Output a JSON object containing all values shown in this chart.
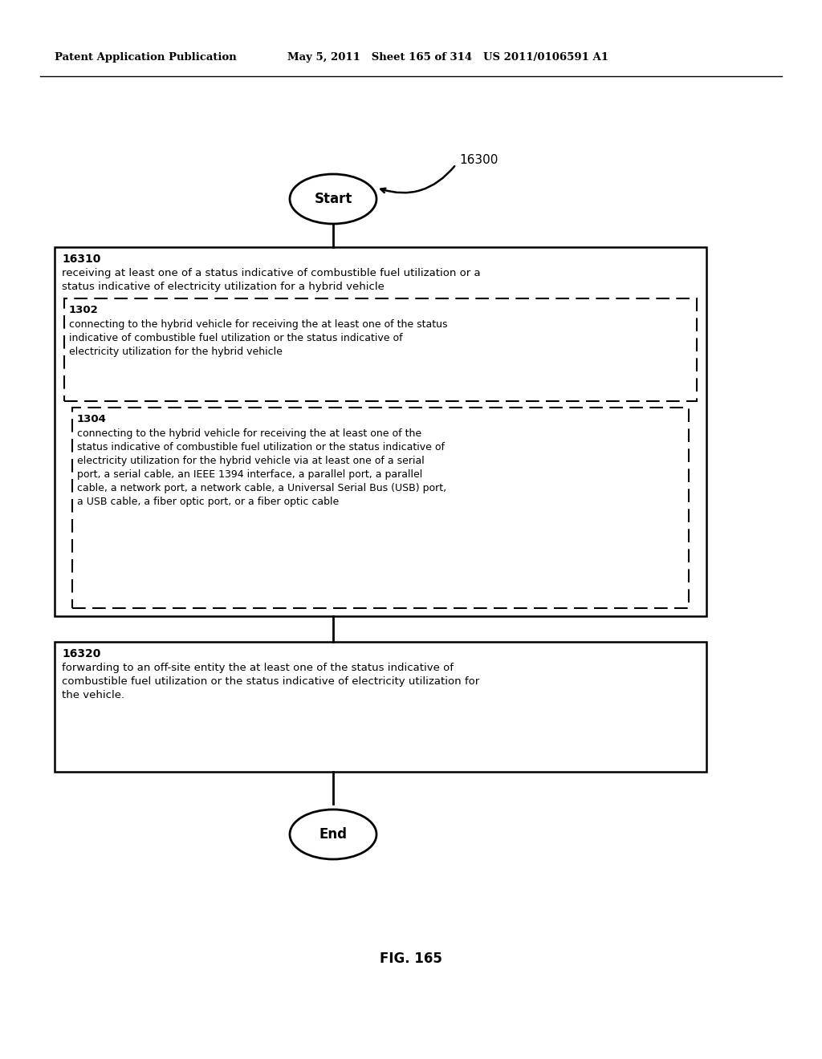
{
  "header_left": "Patent Application Publication",
  "header_mid": "May 5, 2011   Sheet 165 of 314   US 2011/0106591 A1",
  "fig_label": "FIG. 165",
  "start_label": "Start",
  "end_label": "End",
  "arrow_label": "16300",
  "box1_id": "16310",
  "box1_line1": "receiving at least one of a status indicative of combustible fuel utilization or a",
  "box1_line2": "status indicative of electricity utilization for a hybrid vehicle",
  "box1_inner1_id": "1302",
  "box1_inner1_line1": "connecting to the hybrid vehicle for receiving the at least one of the status",
  "box1_inner1_line2": "indicative of combustible fuel utilization or the status indicative of",
  "box1_inner1_line3": "electricity utilization for the hybrid vehicle",
  "box1_inner2_id": "1304",
  "box1_inner2_line1": "connecting to the hybrid vehicle for receiving the at least one of the",
  "box1_inner2_line2": "status indicative of combustible fuel utilization or the status indicative of",
  "box1_inner2_line3": "electricity utilization for the hybrid vehicle via at least one of a serial",
  "box1_inner2_line4": "port, a serial cable, an IEEE 1394 interface, a parallel port, a parallel",
  "box1_inner2_line5": "cable, a network port, a network cable, a Universal Serial Bus (USB) port,",
  "box1_inner2_line6": "a USB cable, a fiber optic port, or a fiber optic cable",
  "box2_id": "16320",
  "box2_line1": "forwarding to an off-site entity the at least one of the status indicative of",
  "box2_line2": "combustible fuel utilization or the status indicative of electricity utilization for",
  "box2_line3": "the vehicle.",
  "background_color": "#ffffff",
  "text_color": "#000000"
}
